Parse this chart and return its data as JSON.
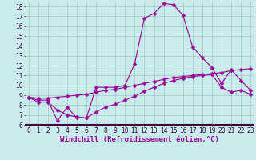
{
  "xlabel": "Windchill (Refroidissement éolien,°C)",
  "background_color": "#c8ecec",
  "line_color": "#990099",
  "x_range": [
    0,
    23
  ],
  "y_range": [
    6,
    18.5
  ],
  "yticks": [
    6,
    7,
    8,
    9,
    10,
    11,
    12,
    13,
    14,
    15,
    16,
    17,
    18
  ],
  "xticks": [
    0,
    1,
    2,
    3,
    4,
    5,
    6,
    7,
    8,
    9,
    10,
    11,
    12,
    13,
    14,
    15,
    16,
    17,
    18,
    19,
    20,
    21,
    22,
    23
  ],
  "series1_x": [
    0,
    1,
    2,
    3,
    4,
    5,
    6,
    7,
    8,
    9,
    10,
    11,
    12,
    13,
    14,
    15,
    16,
    17,
    18,
    19,
    20,
    21,
    22,
    23
  ],
  "series1_y": [
    8.8,
    8.5,
    8.5,
    6.4,
    7.8,
    6.7,
    6.7,
    9.8,
    9.8,
    9.8,
    10.0,
    12.2,
    16.8,
    17.3,
    18.3,
    18.2,
    17.1,
    13.9,
    12.8,
    11.8,
    10.2,
    11.6,
    10.5,
    9.5
  ],
  "series2_x": [
    0,
    1,
    2,
    3,
    4,
    5,
    6,
    7,
    8,
    9,
    10,
    11,
    12,
    13,
    14,
    15,
    16,
    17,
    18,
    19,
    20,
    21,
    22,
    23
  ],
  "series2_y": [
    8.8,
    8.7,
    8.7,
    8.8,
    8.9,
    9.0,
    9.1,
    9.3,
    9.5,
    9.6,
    9.8,
    10.0,
    10.2,
    10.4,
    10.6,
    10.8,
    10.9,
    11.0,
    11.1,
    11.2,
    11.3,
    11.5,
    11.6,
    11.7
  ],
  "series3_x": [
    0,
    1,
    2,
    3,
    4,
    5,
    6,
    7,
    8,
    9,
    10,
    11,
    12,
    13,
    14,
    15,
    16,
    17,
    18,
    19,
    20,
    21,
    22,
    23
  ],
  "series3_y": [
    8.8,
    8.3,
    8.3,
    7.5,
    7.0,
    6.8,
    6.7,
    7.3,
    7.8,
    8.1,
    8.5,
    8.9,
    9.4,
    9.8,
    10.2,
    10.5,
    10.7,
    10.9,
    11.0,
    11.1,
    9.8,
    9.3,
    9.5,
    9.1
  ],
  "grid_color": "#9bbcbc",
  "markersize": 2.5,
  "linewidth": 0.8,
  "xlabel_fontsize": 6.5,
  "tick_fontsize": 5.5
}
